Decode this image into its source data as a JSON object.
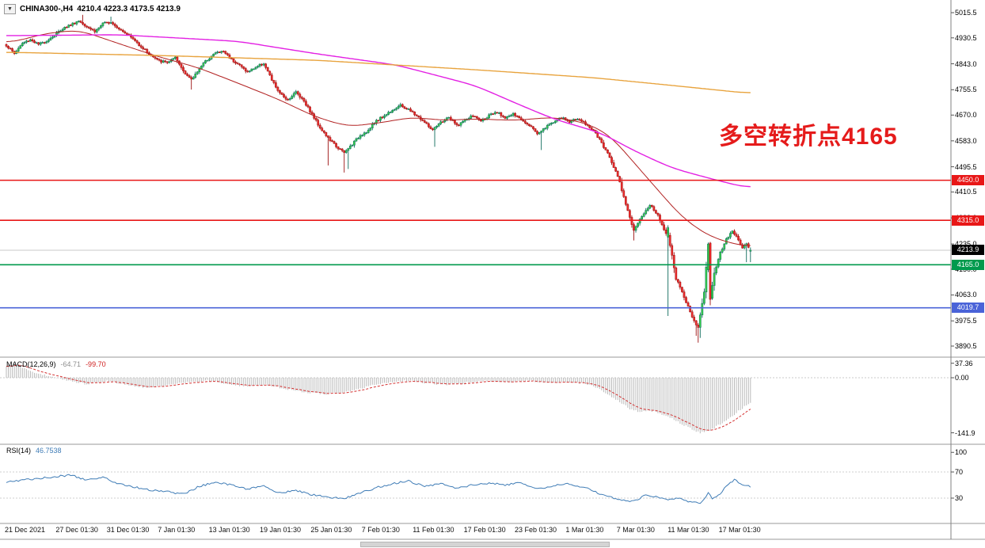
{
  "window": {
    "bg": "#ffffff",
    "border_color": "#9a9a9a",
    "axis_text_color": "#000000"
  },
  "title_bar": {
    "dropdown_icon": "▼",
    "symbol_label": "CHINA300-,H4",
    "ohlc_text": "4210.4 4223.3 4173.5 4213.9"
  },
  "annotation": {
    "text": "多空转折点4165",
    "color": "#e51b1b"
  },
  "x_axis": {
    "labels": [
      "21 Dec 2021",
      "27 Dec 01:30",
      "31 Dec 01:30",
      "7 Jan 01:30",
      "13 Jan 01:30",
      "19 Jan 01:30",
      "25 Jan 01:30",
      "7 Feb 01:30",
      "11 Feb 01:30",
      "17 Feb 01:30",
      "23 Feb 01:30",
      "1 Mar 01:30",
      "7 Mar 01:30",
      "11 Mar 01:30",
      "17 Mar 01:30"
    ]
  },
  "main_chart": {
    "y_labels": [
      {
        "text": "5015.5",
        "value": 5015.5
      },
      {
        "text": "4930.5",
        "value": 4930.5
      },
      {
        "text": "4843.0",
        "value": 4843.0
      },
      {
        "text": "4755.5",
        "value": 4755.5
      },
      {
        "text": "4670.0",
        "value": 4670.0
      },
      {
        "text": "4583.0",
        "value": 4583.0
      },
      {
        "text": "4495.5",
        "value": 4495.5
      },
      {
        "text": "4410.5",
        "value": 4410.5
      },
      {
        "text": "4323.0",
        "value": 4323.0
      },
      {
        "text": "4235.0",
        "value": 4235.0
      },
      {
        "text": "4150.0",
        "value": 4150.0
      },
      {
        "text": "4063.0",
        "value": 4063.0
      },
      {
        "text": "3975.5",
        "value": 3975.5
      },
      {
        "text": "3890.5",
        "value": 3890.5
      }
    ],
    "levels": [
      {
        "label": "4450.0",
        "value": 4450.0,
        "color": "#e81717"
      },
      {
        "label": "4315.0",
        "value": 4315.0,
        "color": "#e81717"
      },
      {
        "label": "4165.0",
        "value": 4165.0,
        "color": "#009a4d"
      },
      {
        "label": "4019.7",
        "value": 4019.7,
        "color": "#4a63d8"
      }
    ],
    "current_price": {
      "label": "4213.9",
      "value": 4213.9,
      "bg": "#000000",
      "fg": "#ffffff",
      "line_color": "#c8c8c8"
    }
  },
  "macd_panel": {
    "name_label": "MACD(12,26,9)",
    "macd_value": "-64.71",
    "signal_value": "-99.70",
    "macd_value_color": "#8f8f8f",
    "signal_value_color": "#cf2020",
    "histogram_color": "#bababa",
    "signal_color": "#d43131",
    "y_labels": [
      {
        "text": "37.36",
        "value": 37.36
      },
      {
        "text": "0.00",
        "value": 0
      },
      {
        "text": "-141.9",
        "value": -141.9
      }
    ]
  },
  "rsi_panel": {
    "name_label": "RSI(14)",
    "value": "46.7538",
    "value_color": "#3f7cb6",
    "line_color": "#3f7cb6",
    "level_values": [
      70,
      30
    ],
    "y_labels": [
      {
        "text": "100",
        "value": 100
      },
      {
        "text": "70",
        "value": 70
      },
      {
        "text": "30",
        "value": 30
      }
    ]
  },
  "scrollbar": {
    "thumb_color": "#d4d4d4"
  },
  "chart_data": {
    "type": "candlestick",
    "symbol": "CHINA300-",
    "timeframe": "H4",
    "title": "CHINA300-,H4",
    "current_bar": {
      "open": 4210.4,
      "high": 4223.3,
      "low": 4173.5,
      "close": 4213.9
    },
    "bar_count": 371,
    "price_axis_range": [
      3890.5,
      5015.5
    ],
    "horizontal_levels": [
      4450.0,
      4315.0,
      4165.0,
      4019.7
    ],
    "annotation": "多空转折点4165",
    "candle_colors": {
      "up_fill": "#35d04a",
      "up_border": "#0e6b5c",
      "down_fill": "#ef2b2b",
      "down_border": "#9c1111"
    },
    "close_anchors": [
      [
        0,
        4905
      ],
      [
        4,
        4878
      ],
      [
        8,
        4912
      ],
      [
        12,
        4925
      ],
      [
        16,
        4908
      ],
      [
        20,
        4920
      ],
      [
        24,
        4940
      ],
      [
        28,
        4962
      ],
      [
        32,
        4975
      ],
      [
        36,
        4988
      ],
      [
        40,
        4970
      ],
      [
        44,
        4952
      ],
      [
        48,
        4978
      ],
      [
        52,
        4985
      ],
      [
        56,
        4962
      ],
      [
        60,
        4945
      ],
      [
        64,
        4920
      ],
      [
        68,
        4895
      ],
      [
        72,
        4870
      ],
      [
        76,
        4852
      ],
      [
        80,
        4848
      ],
      [
        84,
        4862
      ],
      [
        88,
        4820
      ],
      [
        92,
        4788
      ],
      [
        96,
        4828
      ],
      [
        100,
        4858
      ],
      [
        104,
        4880
      ],
      [
        108,
        4885
      ],
      [
        112,
        4858
      ],
      [
        116,
        4838
      ],
      [
        120,
        4815
      ],
      [
        124,
        4832
      ],
      [
        128,
        4845
      ],
      [
        132,
        4788
      ],
      [
        136,
        4742
      ],
      [
        140,
        4722
      ],
      [
        144,
        4748
      ],
      [
        148,
        4718
      ],
      [
        152,
        4672
      ],
      [
        156,
        4628
      ],
      [
        160,
        4592
      ],
      [
        164,
        4565
      ],
      [
        168,
        4542
      ],
      [
        172,
        4572
      ],
      [
        176,
        4602
      ],
      [
        180,
        4618
      ],
      [
        184,
        4652
      ],
      [
        188,
        4668
      ],
      [
        192,
        4688
      ],
      [
        196,
        4702
      ],
      [
        200,
        4688
      ],
      [
        204,
        4668
      ],
      [
        208,
        4645
      ],
      [
        212,
        4618
      ],
      [
        216,
        4645
      ],
      [
        220,
        4662
      ],
      [
        224,
        4635
      ],
      [
        228,
        4652
      ],
      [
        232,
        4668
      ],
      [
        236,
        4650
      ],
      [
        240,
        4668
      ],
      [
        244,
        4678
      ],
      [
        248,
        4662
      ],
      [
        252,
        4672
      ],
      [
        256,
        4655
      ],
      [
        260,
        4638
      ],
      [
        264,
        4608
      ],
      [
        268,
        4628
      ],
      [
        272,
        4648
      ],
      [
        276,
        4660
      ],
      [
        280,
        4648
      ],
      [
        284,
        4658
      ],
      [
        288,
        4640
      ],
      [
        292,
        4618
      ],
      [
        296,
        4575
      ],
      [
        300,
        4528
      ],
      [
        304,
        4465
      ],
      [
        308,
        4372
      ],
      [
        312,
        4278
      ],
      [
        316,
        4328
      ],
      [
        320,
        4368
      ],
      [
        324,
        4330
      ],
      [
        328,
        4272
      ],
      [
        329,
        4268
      ],
      [
        333,
        4118
      ],
      [
        336,
        4072
      ],
      [
        340,
        4005
      ],
      [
        344,
        3952
      ],
      [
        347,
        4075
      ],
      [
        349,
        4235
      ],
      [
        350,
        4052
      ],
      [
        352,
        4138
      ],
      [
        355,
        4205
      ],
      [
        358,
        4252
      ],
      [
        361,
        4282
      ],
      [
        364,
        4245
      ],
      [
        366,
        4222
      ],
      [
        368,
        4238
      ],
      [
        370,
        4213.9
      ]
    ],
    "overrides": [
      {
        "i": 38,
        "high": 5008
      },
      {
        "i": 52,
        "high": 5002
      },
      {
        "i": 92,
        "low": 4756
      },
      {
        "i": 160,
        "low": 4500
      },
      {
        "i": 168,
        "low": 4476
      },
      {
        "i": 170,
        "low": 4488
      },
      {
        "i": 213,
        "low": 4563
      },
      {
        "i": 266,
        "low": 4552
      },
      {
        "i": 312,
        "low": 4247
      },
      {
        "i": 329,
        "open": 4258,
        "close": 4290,
        "high": 4298,
        "low": 3992
      },
      {
        "i": 343,
        "low": 3925
      },
      {
        "i": 344,
        "low": 3902
      },
      {
        "i": 345,
        "low": 3918
      },
      {
        "i": 349,
        "open": 4148,
        "close": 4235,
        "high": 4240,
        "low": 4140
      },
      {
        "i": 350,
        "open": 4238,
        "close": 4048,
        "high": 4242,
        "low": 4028
      },
      {
        "i": 368,
        "low": 4173.5
      },
      {
        "i": 370,
        "open": 4210.4,
        "high": 4223.3,
        "low": 4173.5,
        "close": 4213.9
      }
    ],
    "moving_averages": [
      {
        "name": "fast-red",
        "color": "#b22222",
        "width": 1,
        "anchors": [
          [
            0,
            4911
          ],
          [
            20,
            4946
          ],
          [
            36,
            4957
          ],
          [
            56,
            4911
          ],
          [
            76,
            4866
          ],
          [
            95,
            4831
          ],
          [
            115,
            4778
          ],
          [
            135,
            4724
          ],
          [
            154,
            4663
          ],
          [
            170,
            4631
          ],
          [
            186,
            4644
          ],
          [
            202,
            4663
          ],
          [
            217,
            4652
          ],
          [
            233,
            4657
          ],
          [
            253,
            4652
          ],
          [
            272,
            4663
          ],
          [
            288,
            4644
          ],
          [
            300,
            4604
          ],
          [
            312,
            4510
          ],
          [
            324,
            4417
          ],
          [
            335,
            4331
          ],
          [
            347,
            4270
          ],
          [
            357,
            4243
          ],
          [
            370,
            4224
          ]
        ]
      },
      {
        "name": "mid-magenta",
        "color": "#e321e3",
        "width": 1.4,
        "anchors": [
          [
            0,
            4938
          ],
          [
            56,
            4941
          ],
          [
            115,
            4919
          ],
          [
            154,
            4877
          ],
          [
            194,
            4839
          ],
          [
            233,
            4770
          ],
          [
            253,
            4711
          ],
          [
            272,
            4657
          ],
          [
            296,
            4609
          ],
          [
            312,
            4550
          ],
          [
            331,
            4491
          ],
          [
            351,
            4454
          ],
          [
            370,
            4422
          ]
        ]
      },
      {
        "name": "slow-orange",
        "color": "#e8a33d",
        "width": 1.4,
        "anchors": [
          [
            0,
            4882
          ],
          [
            76,
            4871
          ],
          [
            154,
            4855
          ],
          [
            233,
            4823
          ],
          [
            292,
            4796
          ],
          [
            331,
            4770
          ],
          [
            370,
            4743
          ]
        ]
      }
    ],
    "macd": {
      "params": [
        12,
        26,
        9
      ],
      "current": -64.71,
      "signal": -99.7,
      "range": [
        -141.9,
        37.36
      ],
      "anchors": [
        [
          0,
          30
        ],
        [
          5,
          35
        ],
        [
          10,
          22
        ],
        [
          15,
          12
        ],
        [
          20,
          5
        ],
        [
          30,
          -8
        ],
        [
          40,
          -16
        ],
        [
          50,
          -8
        ],
        [
          60,
          -18
        ],
        [
          70,
          -26
        ],
        [
          80,
          -20
        ],
        [
          90,
          -12
        ],
        [
          100,
          -8
        ],
        [
          110,
          -16
        ],
        [
          120,
          -22
        ],
        [
          130,
          -18
        ],
        [
          140,
          -30
        ],
        [
          150,
          -38
        ],
        [
          160,
          -42
        ],
        [
          170,
          -34
        ],
        [
          180,
          -22
        ],
        [
          190,
          -12
        ],
        [
          200,
          -8
        ],
        [
          210,
          -14
        ],
        [
          220,
          -18
        ],
        [
          230,
          -12
        ],
        [
          240,
          -8
        ],
        [
          250,
          -10
        ],
        [
          260,
          -8
        ],
        [
          270,
          -12
        ],
        [
          280,
          -10
        ],
        [
          288,
          -16
        ],
        [
          294,
          -26
        ],
        [
          300,
          -45
        ],
        [
          305,
          -62
        ],
        [
          310,
          -80
        ],
        [
          315,
          -88
        ],
        [
          320,
          -84
        ],
        [
          325,
          -92
        ],
        [
          330,
          -102
        ],
        [
          335,
          -116
        ],
        [
          340,
          -130
        ],
        [
          345,
          -141.9
        ],
        [
          350,
          -134
        ],
        [
          353,
          -126
        ],
        [
          356,
          -116
        ],
        [
          359,
          -106
        ],
        [
          362,
          -94
        ],
        [
          365,
          -82
        ],
        [
          368,
          -72
        ],
        [
          370,
          -64.71
        ]
      ]
    },
    "rsi": {
      "period": 14,
      "current": 46.7538,
      "levels": [
        70,
        30
      ],
      "anchors": [
        [
          0,
          55
        ],
        [
          8,
          58
        ],
        [
          16,
          60
        ],
        [
          24,
          63
        ],
        [
          32,
          65
        ],
        [
          40,
          58
        ],
        [
          48,
          62
        ],
        [
          56,
          52
        ],
        [
          64,
          47
        ],
        [
          72,
          42
        ],
        [
          80,
          40
        ],
        [
          88,
          36
        ],
        [
          96,
          48
        ],
        [
          104,
          55
        ],
        [
          112,
          50
        ],
        [
          120,
          44
        ],
        [
          128,
          48
        ],
        [
          136,
          38
        ],
        [
          144,
          42
        ],
        [
          152,
          35
        ],
        [
          160,
          31
        ],
        [
          168,
          29
        ],
        [
          176,
          38
        ],
        [
          184,
          46
        ],
        [
          192,
          52
        ],
        [
          200,
          56
        ],
        [
          208,
          48
        ],
        [
          216,
          52
        ],
        [
          224,
          45
        ],
        [
          232,
          50
        ],
        [
          240,
          53
        ],
        [
          248,
          50
        ],
        [
          256,
          54
        ],
        [
          264,
          44
        ],
        [
          272,
          49
        ],
        [
          280,
          52
        ],
        [
          288,
          46
        ],
        [
          296,
          36
        ],
        [
          304,
          28
        ],
        [
          312,
          25
        ],
        [
          318,
          35
        ],
        [
          324,
          32
        ],
        [
          329,
          28
        ],
        [
          334,
          30
        ],
        [
          340,
          24
        ],
        [
          345,
          22
        ],
        [
          349,
          38
        ],
        [
          351,
          30
        ],
        [
          354,
          34
        ],
        [
          358,
          48
        ],
        [
          362,
          58
        ],
        [
          365,
          52
        ],
        [
          368,
          49
        ],
        [
          370,
          46.75
        ]
      ]
    }
  }
}
